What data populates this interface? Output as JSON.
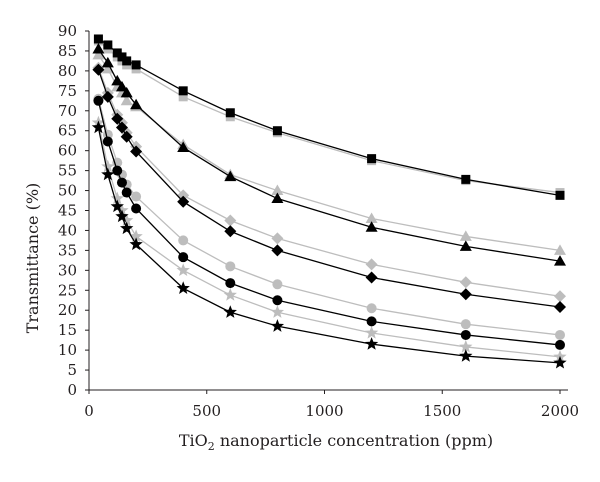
{
  "chart_data": {
    "type": "line",
    "xlabel": {
      "prefix": "TiO",
      "sub": "2",
      "suffix": " nanoparticle concentration (ppm)"
    },
    "ylabel": "Transmittance (%)",
    "xlim": [
      0,
      2000
    ],
    "ylim": [
      0,
      90
    ],
    "xticks": [
      0,
      500,
      1000,
      1500,
      2000
    ],
    "yticks": [
      0,
      5,
      10,
      15,
      20,
      25,
      30,
      35,
      40,
      45,
      50,
      55,
      60,
      65,
      70,
      75,
      80,
      85,
      90
    ],
    "x": [
      40,
      80,
      120,
      140,
      160,
      200,
      400,
      600,
      800,
      1200,
      1600,
      2000
    ],
    "series": [
      {
        "marker": "square",
        "color": "#bdbdbd",
        "values": [
          87.5,
          85.5,
          83.5,
          82.5,
          81.5,
          80.5,
          73.5,
          68.5,
          64.5,
          57.5,
          52.5,
          49.5
        ]
      },
      {
        "marker": "square",
        "color": "#000000",
        "values": [
          88,
          86.5,
          84.5,
          83.5,
          82.5,
          81.5,
          75,
          69.5,
          65,
          58,
          52.8,
          48.8
        ]
      },
      {
        "marker": "triangle",
        "color": "#bdbdbd",
        "values": [
          84,
          80.5,
          76,
          74.5,
          72.5,
          71,
          61.5,
          54,
          50,
          43,
          38.5,
          35
        ]
      },
      {
        "marker": "triangle",
        "color": "#000000",
        "values": [
          85.5,
          82,
          77.5,
          76,
          74.5,
          71.5,
          60.8,
          53.5,
          48,
          40.8,
          36,
          32.3
        ]
      },
      {
        "marker": "diamond",
        "color": "#bdbdbd",
        "values": [
          80.8,
          74.5,
          69,
          67,
          64.5,
          61,
          48.8,
          42.5,
          38,
          31.5,
          27,
          23.5
        ]
      },
      {
        "marker": "diamond",
        "color": "#000000",
        "values": [
          80.3,
          73.5,
          68,
          65.8,
          63.5,
          59.8,
          47.2,
          39.8,
          35,
          28.2,
          24,
          20.8
        ]
      },
      {
        "marker": "circle",
        "color": "#bdbdbd",
        "values": [
          73,
          64,
          57,
          54,
          51.5,
          48.5,
          37.5,
          31,
          26.5,
          20.5,
          16.5,
          13.8
        ]
      },
      {
        "marker": "circle",
        "color": "#000000",
        "values": [
          72.5,
          62.3,
          55,
          52,
          49.5,
          45.5,
          33.3,
          26.8,
          22.5,
          17.2,
          13.8,
          11.3
        ]
      },
      {
        "marker": "star",
        "color": "#bdbdbd",
        "values": [
          67,
          56,
          48,
          45,
          42.5,
          38.5,
          30,
          23.8,
          19.5,
          14.3,
          10.8,
          8.3
        ]
      },
      {
        "marker": "star",
        "color": "#000000",
        "values": [
          65.8,
          54,
          46,
          43.5,
          40.5,
          36.5,
          25.5,
          19.5,
          16,
          11.5,
          8.5,
          6.8
        ]
      }
    ]
  }
}
